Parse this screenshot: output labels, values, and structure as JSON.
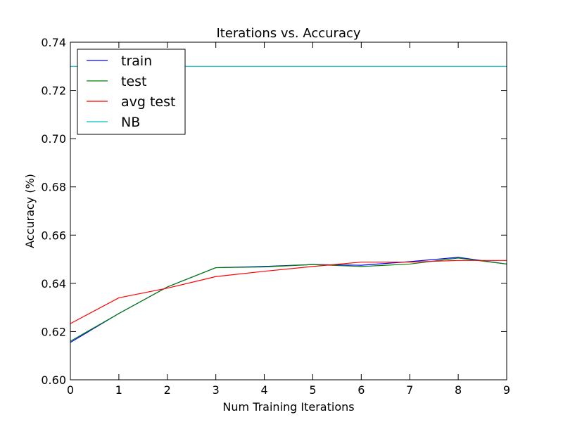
{
  "chart_data": {
    "type": "line",
    "title": "Iterations  vs. Accuracy",
    "xlabel": "Num Training Iterations",
    "ylabel": "Accuracy (%)",
    "xlim": [
      0,
      9
    ],
    "ylim": [
      0.6,
      0.74
    ],
    "x_ticks": [
      "0",
      "1",
      "2",
      "3",
      "4",
      "5",
      "6",
      "7",
      "8",
      "9"
    ],
    "y_ticks": [
      "0.60",
      "0.62",
      "0.64",
      "0.66",
      "0.68",
      "0.70",
      "0.72",
      "0.74"
    ],
    "grid": false,
    "legend_position": "top-left",
    "x": [
      0,
      1,
      2,
      3,
      4,
      5,
      6,
      7,
      8,
      9
    ],
    "series": [
      {
        "name": "train",
        "color": "#0000ff",
        "values": [
          0.6155,
          0.6275,
          0.6385,
          0.6465,
          0.647,
          0.6478,
          0.6475,
          0.649,
          0.6508,
          0.648
        ]
      },
      {
        "name": "test",
        "color": "#008000",
        "values": [
          0.616,
          0.6275,
          0.6385,
          0.6465,
          0.6468,
          0.6478,
          0.647,
          0.648,
          0.6505,
          0.648
        ]
      },
      {
        "name": "avg test",
        "color": "#ff0000",
        "values": [
          0.6233,
          0.634,
          0.638,
          0.6428,
          0.645,
          0.647,
          0.6488,
          0.6488,
          0.6495,
          0.6495
        ]
      },
      {
        "name": "NB",
        "color": "#00bfbf",
        "values": [
          0.73,
          0.73,
          0.73,
          0.73,
          0.73,
          0.73,
          0.73,
          0.73,
          0.73,
          0.73
        ]
      }
    ]
  }
}
